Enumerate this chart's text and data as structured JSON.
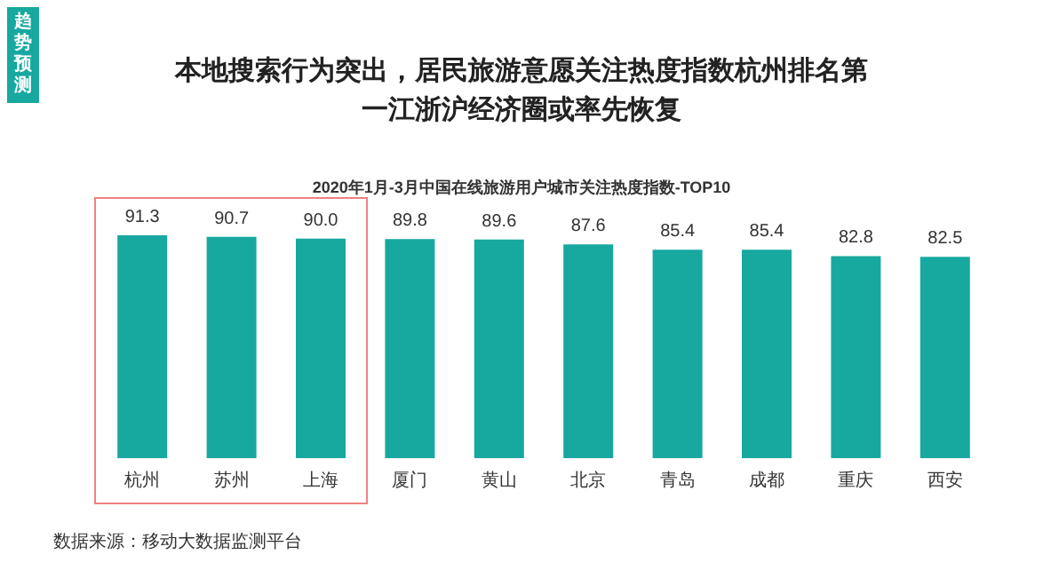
{
  "chart_data": {
    "type": "bar",
    "title": "本地搜索行为突出，居民旅游意愿关注热度指数杭州排名第一江浙沪经济圈或率先恢复",
    "subtitle": "2020年1月-3月中国在线旅游用户城市关注热度指数-TOP10",
    "categories": [
      "杭州",
      "苏州",
      "上海",
      "厦门",
      "黄山",
      "北京",
      "青岛",
      "成都",
      "重庆",
      "西安"
    ],
    "values": [
      91.3,
      90.7,
      90.0,
      89.8,
      89.6,
      87.6,
      85.4,
      85.4,
      82.8,
      82.5
    ],
    "value_labels": [
      "91.3",
      "90.7",
      "90.0",
      "89.8",
      "89.6",
      "87.6",
      "85.4",
      "85.4",
      "82.8",
      "82.5"
    ],
    "color": "#17a8a0",
    "tick_labels": "x",
    "annotations": [
      "趋势预测",
      "数据来源：移动大数据监测平台"
    ]
  }
}
